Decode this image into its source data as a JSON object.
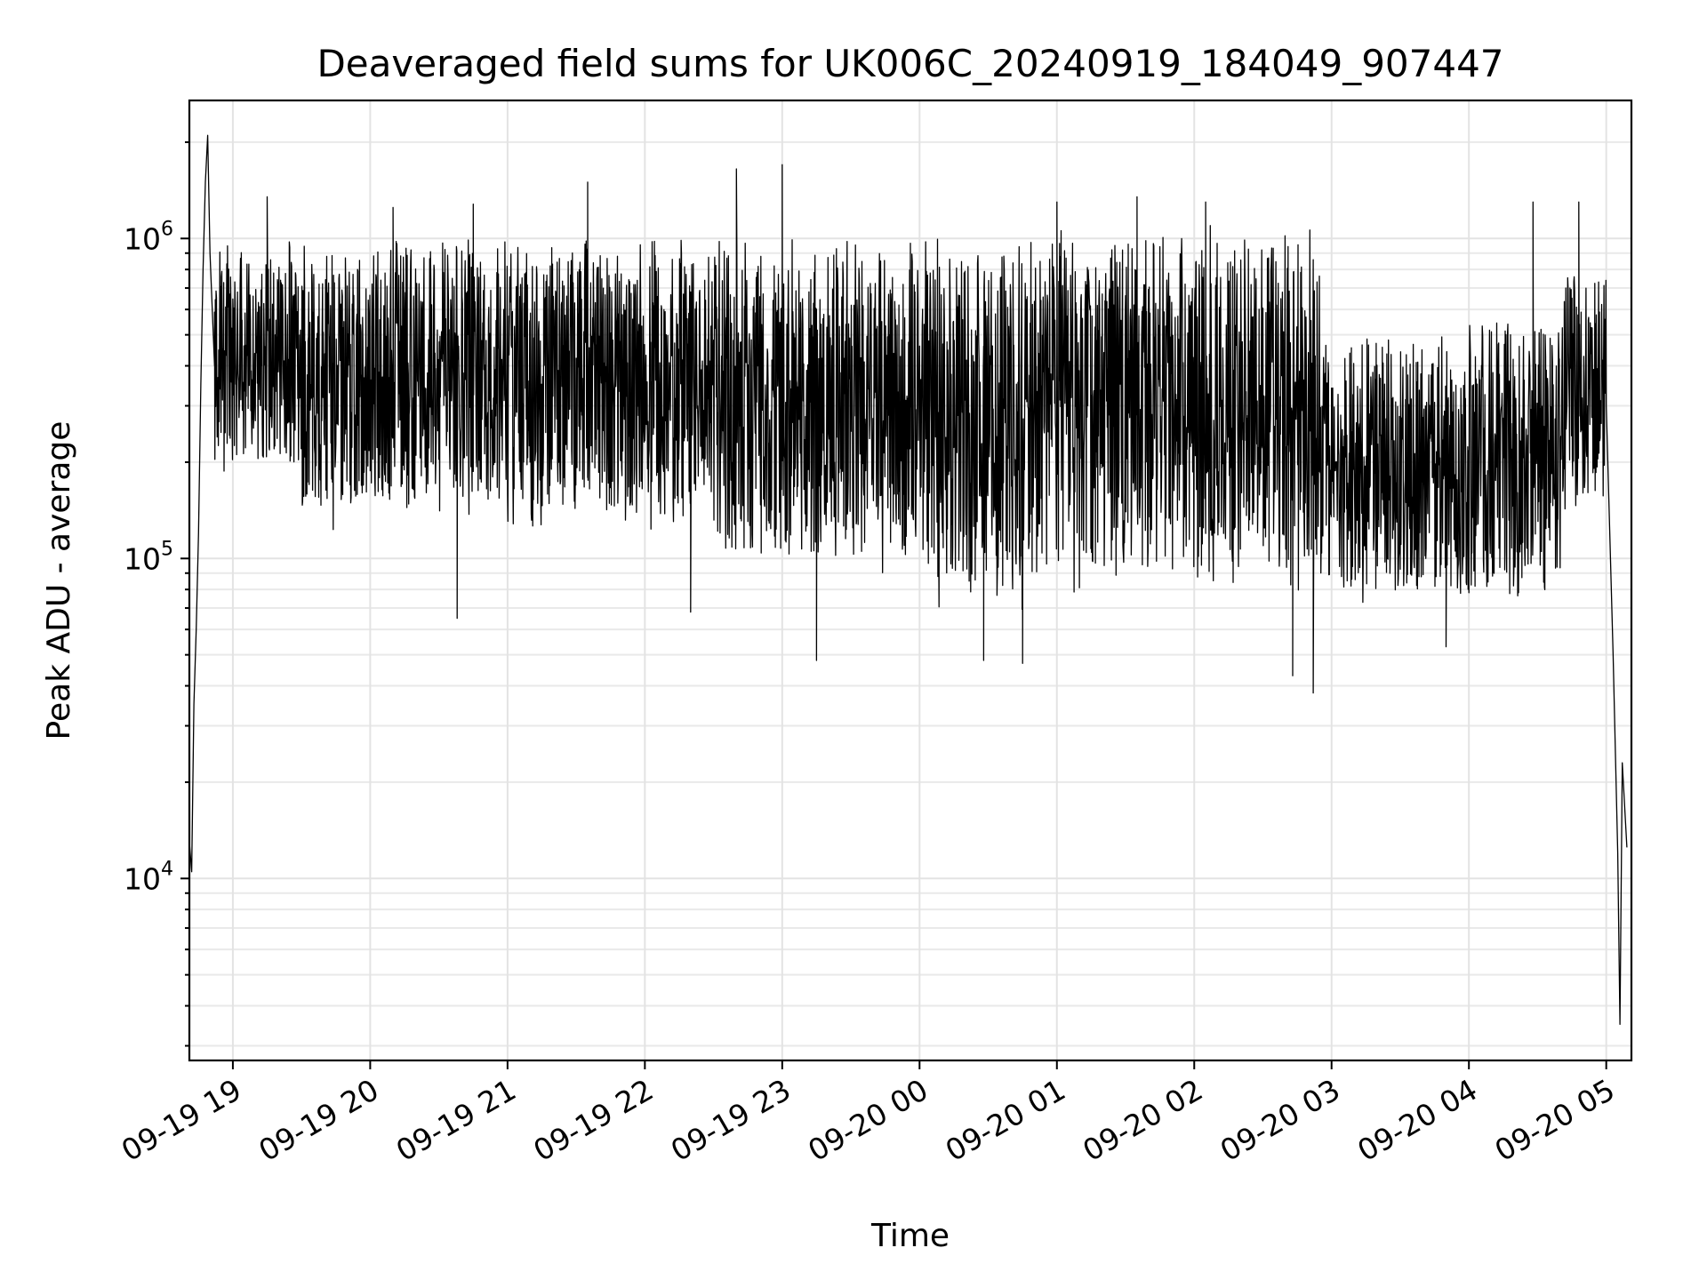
{
  "chart_data": {
    "type": "line",
    "title": "Deaveraged field sums for UK006C_20240919_184049_907447",
    "xlabel": "Time",
    "ylabel": "Peak ADU - average",
    "yscale": "log",
    "ylim": [
      2700,
      2700000
    ],
    "xlim": [
      "2024-09-19 18:41",
      "2024-09-20 05:11"
    ],
    "grid": "major and minor, on",
    "x_ticks": [
      {
        "t": "2024-09-19 19:00",
        "label": "09-19 19"
      },
      {
        "t": "2024-09-19 20:00",
        "label": "09-19 20"
      },
      {
        "t": "2024-09-19 21:00",
        "label": "09-19 21"
      },
      {
        "t": "2024-09-19 22:00",
        "label": "09-19 22"
      },
      {
        "t": "2024-09-19 23:00",
        "label": "09-19 23"
      },
      {
        "t": "2024-09-20 00:00",
        "label": "09-20 00"
      },
      {
        "t": "2024-09-20 01:00",
        "label": "09-20 01"
      },
      {
        "t": "2024-09-20 02:00",
        "label": "09-20 02"
      },
      {
        "t": "2024-09-20 03:00",
        "label": "09-20 03"
      },
      {
        "t": "2024-09-20 04:00",
        "label": "09-20 04"
      },
      {
        "t": "2024-09-20 05:00",
        "label": "09-20 05"
      }
    ],
    "y_ticks": [
      {
        "value": 10000,
        "base": "10",
        "exp": "4"
      },
      {
        "value": 100000,
        "base": "10",
        "exp": "5"
      },
      {
        "value": 1000000,
        "base": "10",
        "exp": "6"
      }
    ],
    "series": [
      {
        "color": "#000000",
        "points": [
          [
            "2024-09-19 18:41",
            13000
          ],
          [
            "2024-09-19 18:42",
            10500
          ],
          [
            "2024-09-19 18:43",
            35000
          ],
          [
            "2024-09-19 18:44",
            60000
          ],
          [
            "2024-09-19 18:45",
            120000
          ],
          [
            "2024-09-19 18:46",
            350000
          ],
          [
            "2024-09-19 18:47",
            800000
          ],
          [
            "2024-09-19 18:48",
            1500000
          ],
          [
            "2024-09-19 18:49",
            2100000
          ],
          [
            "2024-09-19 18:50",
            900000
          ],
          [
            "2024-09-19 18:52",
            400000
          ],
          [
            "2024-09-19 19:00",
            500000
          ],
          [
            "2024-09-19 19:30",
            480000
          ],
          [
            "2024-09-19 20:00",
            500000
          ],
          [
            "2024-09-19 20:30",
            460000
          ],
          [
            "2024-09-19 21:00",
            420000
          ],
          [
            "2024-09-19 21:30",
            430000
          ],
          [
            "2024-09-19 22:00",
            430000
          ],
          [
            "2024-09-19 22:30",
            420000
          ],
          [
            "2024-09-19 23:00",
            400000
          ],
          [
            "2024-09-19 23:30",
            380000
          ],
          [
            "2024-09-20 00:00",
            430000
          ],
          [
            "2024-09-20 00:30",
            380000
          ],
          [
            "2024-09-20 01:00",
            470000
          ],
          [
            "2024-09-20 01:30",
            430000
          ],
          [
            "2024-09-20 02:00",
            450000
          ],
          [
            "2024-09-20 02:30",
            420000
          ],
          [
            "2024-09-20 02:55",
            470000
          ],
          [
            "2024-09-20 03:00",
            200000
          ],
          [
            "2024-09-20 03:30",
            190000
          ],
          [
            "2024-09-20 04:00",
            200000
          ],
          [
            "2024-09-20 04:30",
            260000
          ],
          [
            "2024-09-20 04:50",
            600000
          ],
          [
            "2024-09-20 05:00",
            300000
          ],
          [
            "2024-09-20 05:03",
            50000
          ],
          [
            "2024-09-20 05:05",
            12000
          ],
          [
            "2024-09-20 05:06",
            3500
          ],
          [
            "2024-09-20 05:07",
            23000
          ],
          [
            "2024-09-20 05:09",
            12500
          ]
        ],
        "spikes_high": [
          [
            "2024-09-19 18:49",
            2100000
          ],
          [
            "2024-09-19 19:15",
            1350000
          ],
          [
            "2024-09-19 20:10",
            1250000
          ],
          [
            "2024-09-19 20:45",
            1280000
          ],
          [
            "2024-09-19 21:35",
            1500000
          ],
          [
            "2024-09-19 22:40",
            1650000
          ],
          [
            "2024-09-19 23:00",
            1700000
          ],
          [
            "2024-09-20 01:00",
            1300000
          ],
          [
            "2024-09-20 01:35",
            1350000
          ],
          [
            "2024-09-20 02:05",
            1300000
          ],
          [
            "2024-09-20 04:28",
            1300000
          ],
          [
            "2024-09-20 04:48",
            1300000
          ]
        ],
        "dips_low": [
          [
            "2024-09-19 20:38",
            65000
          ],
          [
            "2024-09-19 22:20",
            68000
          ],
          [
            "2024-09-19 23:15",
            48000
          ],
          [
            "2024-09-20 00:28",
            48000
          ],
          [
            "2024-09-20 00:45",
            47000
          ],
          [
            "2024-09-20 02:43",
            43000
          ],
          [
            "2024-09-20 02:52",
            38000
          ],
          [
            "2024-09-20 03:50",
            53000
          ]
        ],
        "band": [
          {
            "from": "2024-09-19 18:52",
            "to": "2024-09-19 19:30",
            "low": 170000,
            "high": 1000000
          },
          {
            "from": "2024-09-19 19:30",
            "to": "2024-09-19 21:00",
            "low": 120000,
            "high": 1000000
          },
          {
            "from": "2024-09-19 21:00",
            "to": "2024-09-19 22:30",
            "low": 110000,
            "high": 1000000
          },
          {
            "from": "2024-09-19 22:30",
            "to": "2024-09-20 00:00",
            "low": 80000,
            "high": 1000000
          },
          {
            "from": "2024-09-20 00:00",
            "to": "2024-09-20 01:00",
            "low": 65000,
            "high": 1000000
          },
          {
            "from": "2024-09-20 01:00",
            "to": "2024-09-20 02:55",
            "low": 70000,
            "high": 1100000
          },
          {
            "from": "2024-09-20 02:55",
            "to": "2024-09-20 04:00",
            "low": 65000,
            "high": 500000
          },
          {
            "from": "2024-09-20 04:00",
            "to": "2024-09-20 04:40",
            "low": 65000,
            "high": 550000
          },
          {
            "from": "2024-09-20 04:40",
            "to": "2024-09-20 05:00",
            "low": 130000,
            "high": 800000
          }
        ]
      }
    ]
  }
}
